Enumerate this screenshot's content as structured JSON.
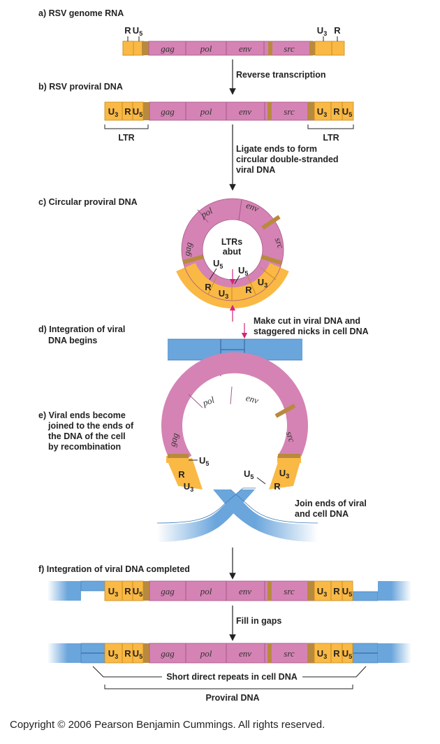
{
  "panels": {
    "a": "a) RSV genome RNA",
    "b": "b) RSV proviral DNA",
    "c": "c) Circular proviral DNA",
    "d1": "d) Integration of viral",
    "d2": "DNA begins",
    "e1": "e) Viral ends become",
    "e2": "joined to the ends of",
    "e3": "the DNA of the cell",
    "e4": "by recombination",
    "f": "f) Integration of viral DNA completed"
  },
  "steps": {
    "reverse": "Reverse transcription",
    "ligate1": "Ligate ends to form",
    "ligate2": "circular double-stranded",
    "ligate3": "viral DNA",
    "cut1": "Make cut in viral DNA and",
    "cut2": "staggered nicks in cell DNA",
    "join1": "Join ends of viral",
    "join2": "and cell DNA",
    "fill": "Fill in gaps"
  },
  "genes": {
    "gag": "gag",
    "pol": "pol",
    "env": "env",
    "src": "src"
  },
  "segments": {
    "R": "R",
    "U": "U",
    "sub3": "3",
    "sub5": "5"
  },
  "labels": {
    "ltr": "LTR",
    "ltrs_abut_1": "LTRs",
    "ltrs_abut_2": "abut",
    "repeats": "Short direct repeats in cell DNA",
    "proviral": "Proviral DNA"
  },
  "copyright": "Copyright © 2006 Pearson Benjamin Cummings. All rights reserved.",
  "colors": {
    "ltr": "#f9b944",
    "genome": "#d583b4",
    "spacer": "#b88a3e",
    "cell_dna": "#6aa5dc",
    "arrow_pink": "#d4237a"
  }
}
